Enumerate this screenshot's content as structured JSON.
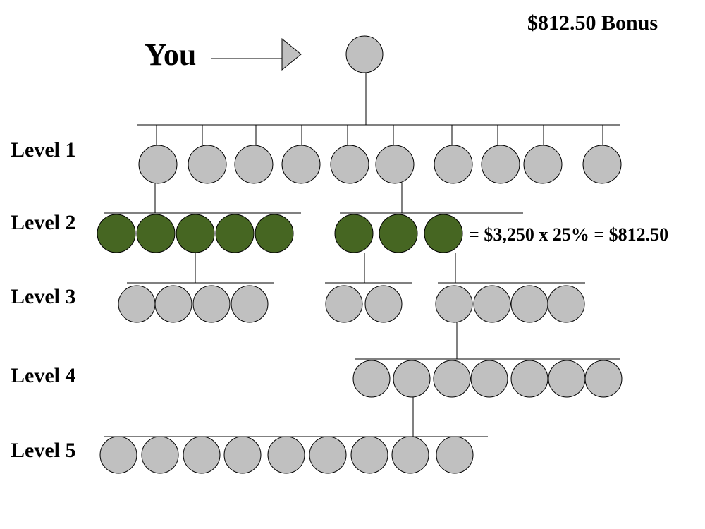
{
  "header": {
    "bonus": "$812.50 Bonus"
  },
  "you_label": "You",
  "levels": [
    "Level 1",
    "Level 2",
    "Level 3",
    "Level 4",
    "Level 5"
  ],
  "formula": "= $3,250 x 25% = $812.50"
}
